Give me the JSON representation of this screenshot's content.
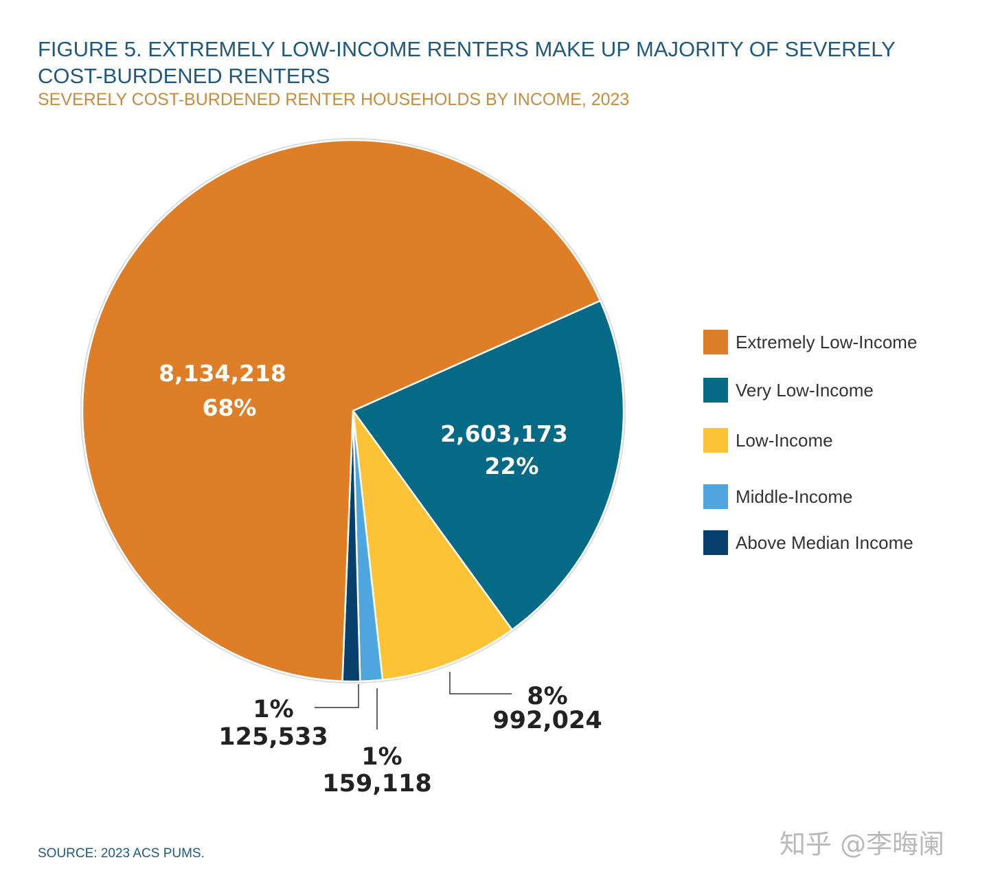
{
  "title": "FIGURE 5. EXTREMELY LOW-INCOME RENTERS MAKE UP MAJORITY OF SEVERELY COST-BURDENED RENTERS",
  "subtitle": "SEVERELY COST-BURDENED RENTER HOUSEHOLDS BY INCOME, 2023",
  "source": "SOURCE: 2023 ACS PUMS.",
  "watermark": "知乎 @李晦阑",
  "chart_data": {
    "type": "pie",
    "title": "FIGURE 5. EXTREMELY LOW-INCOME RENTERS MAKE UP MAJORITY OF SEVERELY COST-BURDENED RENTERS",
    "subtitle": "SEVERELY COST-BURDENED RENTER HOUSEHOLDS BY INCOME, 2023",
    "legend_position": "right",
    "slices": [
      {
        "name": "Extremely Low-Income",
        "value": 8134218,
        "value_label": "8,134,218",
        "percent_label": "68%",
        "color": "#de7f28"
      },
      {
        "name": "Very Low-Income",
        "value": 2603173,
        "value_label": "2,603,173",
        "percent_label": "22%",
        "color": "#056a85"
      },
      {
        "name": "Low-Income",
        "value": 992024,
        "value_label": "992,024",
        "percent_label": "8%",
        "color": "#fdc337"
      },
      {
        "name": "Middle-Income",
        "value": 159118,
        "value_label": "159,118",
        "percent_label": "1%",
        "color": "#4fa5de"
      },
      {
        "name": "Above Median Income",
        "value": 125533,
        "value_label": "125,533",
        "percent_label": "1%",
        "color": "#063f6b"
      }
    ]
  }
}
